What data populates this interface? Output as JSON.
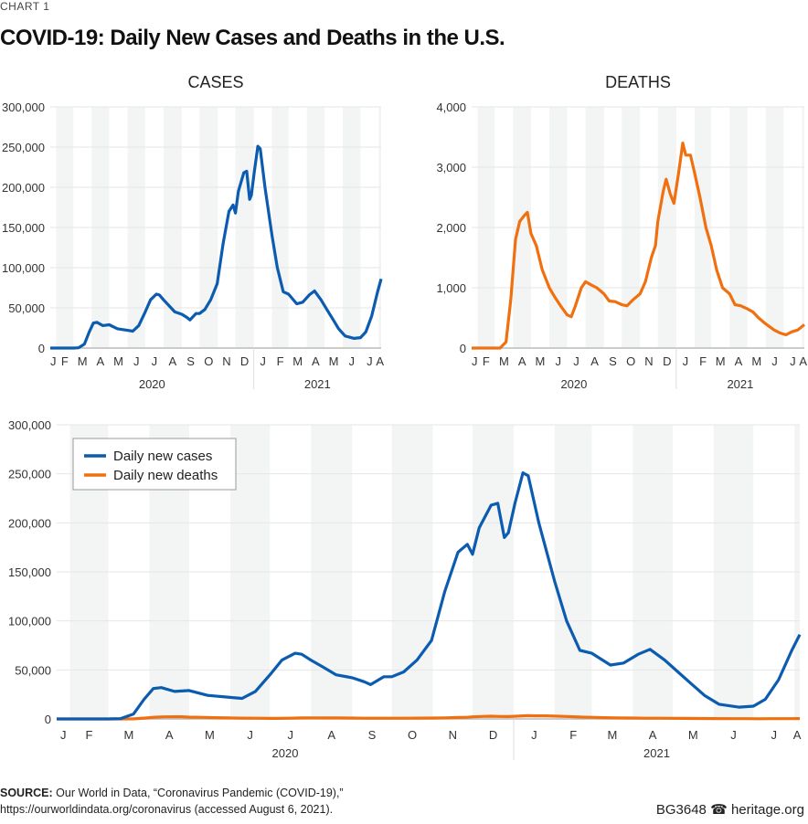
{
  "header": {
    "kicker": "CHART 1",
    "title": "COVID-19: Daily New Cases and Deaths in the U.S."
  },
  "footer": {
    "source_label": "SOURCE:",
    "source_line1": "Our World in Data, “Coronavirus Pandemic (COVID-19),”",
    "source_line2": "https://ourworldindata.org/coronavirus (accessed August 6, 2021).",
    "code": "BG3648",
    "site": "heritage.org",
    "logo_icon": "liberty-bell-icon"
  },
  "colors": {
    "cases": "#0b5cb0",
    "deaths": "#f07010",
    "band": "#f3f4f4",
    "grid": "#e6e6e6",
    "axis": "#bbbbbb"
  },
  "chart_data": [
    {
      "type": "line",
      "title": "CASES",
      "ylim": [
        0,
        300000
      ],
      "yticks": [
        "0",
        "50,000",
        "100,000",
        "150,000",
        "200,000",
        "250,000",
        "300,000"
      ],
      "month_labels": [
        "J",
        "F",
        "M",
        "A",
        "M",
        "J",
        "J",
        "A",
        "S",
        "O",
        "N",
        "D",
        "J",
        "F",
        "M",
        "A",
        "M",
        "J",
        "J",
        "A"
      ],
      "year_labels": [
        "2020",
        "2021"
      ],
      "series": [
        "cases"
      ]
    },
    {
      "type": "line",
      "title": "DEATHS",
      "ylim": [
        0,
        4000
      ],
      "yticks": [
        "0",
        "1,000",
        "2,000",
        "3,000",
        "4,000"
      ],
      "month_labels": [
        "J",
        "F",
        "M",
        "A",
        "M",
        "J",
        "J",
        "A",
        "S",
        "O",
        "N",
        "D",
        "J",
        "F",
        "M",
        "A",
        "M",
        "J",
        "J",
        "A"
      ],
      "year_labels": [
        "2020",
        "2021"
      ],
      "series": [
        "deaths"
      ]
    },
    {
      "type": "line",
      "title": "",
      "ylim": [
        0,
        300000
      ],
      "yticks": [
        "0",
        "50,000",
        "100,000",
        "150,000",
        "200,000",
        "250,000",
        "300,000"
      ],
      "month_labels": [
        "J",
        "F",
        "M",
        "A",
        "M",
        "J",
        "J",
        "A",
        "S",
        "O",
        "N",
        "D",
        "J",
        "F",
        "M",
        "A",
        "M",
        "J",
        "J",
        "A"
      ],
      "year_labels": [
        "2020",
        "2021"
      ],
      "series": [
        "cases",
        "deaths"
      ],
      "legend": {
        "placement": "top-left",
        "entries": [
          "Daily new cases",
          "Daily new deaths"
        ]
      }
    }
  ],
  "series_data": {
    "cases": [
      [
        "2020-01-22",
        0
      ],
      [
        "2020-03-01",
        0
      ],
      [
        "2020-03-10",
        300
      ],
      [
        "2020-03-20",
        5000
      ],
      [
        "2020-03-28",
        20000
      ],
      [
        "2020-04-04",
        31000
      ],
      [
        "2020-04-10",
        32000
      ],
      [
        "2020-04-20",
        28000
      ],
      [
        "2020-05-01",
        29000
      ],
      [
        "2020-05-15",
        24000
      ],
      [
        "2020-06-01",
        22000
      ],
      [
        "2020-06-10",
        21000
      ],
      [
        "2020-06-20",
        28000
      ],
      [
        "2020-07-01",
        45000
      ],
      [
        "2020-07-10",
        60000
      ],
      [
        "2020-07-20",
        67000
      ],
      [
        "2020-07-25",
        66000
      ],
      [
        "2020-08-01",
        60000
      ],
      [
        "2020-08-10",
        53000
      ],
      [
        "2020-08-20",
        45000
      ],
      [
        "2020-09-01",
        42000
      ],
      [
        "2020-09-10",
        38000
      ],
      [
        "2020-09-15",
        35000
      ],
      [
        "2020-09-25",
        43000
      ],
      [
        "2020-10-01",
        43000
      ],
      [
        "2020-10-10",
        48000
      ],
      [
        "2020-10-20",
        60000
      ],
      [
        "2020-10-31",
        80000
      ],
      [
        "2020-11-10",
        130000
      ],
      [
        "2020-11-20",
        170000
      ],
      [
        "2020-11-27",
        178000
      ],
      [
        "2020-12-01",
        168000
      ],
      [
        "2020-12-06",
        195000
      ],
      [
        "2020-12-15",
        218000
      ],
      [
        "2020-12-20",
        220000
      ],
      [
        "2020-12-25",
        185000
      ],
      [
        "2020-12-28",
        190000
      ],
      [
        "2021-01-02",
        220000
      ],
      [
        "2021-01-08",
        251000
      ],
      [
        "2021-01-12",
        248000
      ],
      [
        "2021-01-20",
        200000
      ],
      [
        "2021-02-01",
        140000
      ],
      [
        "2021-02-10",
        100000
      ],
      [
        "2021-02-20",
        70000
      ],
      [
        "2021-03-01",
        67000
      ],
      [
        "2021-03-15",
        55000
      ],
      [
        "2021-03-25",
        57000
      ],
      [
        "2021-04-05",
        66000
      ],
      [
        "2021-04-14",
        71000
      ],
      [
        "2021-04-25",
        60000
      ],
      [
        "2021-05-05",
        48000
      ],
      [
        "2021-05-15",
        36000
      ],
      [
        "2021-05-25",
        24000
      ],
      [
        "2021-06-05",
        15000
      ],
      [
        "2021-06-20",
        12000
      ],
      [
        "2021-07-01",
        13000
      ],
      [
        "2021-07-10",
        20000
      ],
      [
        "2021-07-20",
        40000
      ],
      [
        "2021-07-30",
        70000
      ],
      [
        "2021-08-05",
        86000
      ]
    ],
    "deaths": [
      [
        "2020-01-22",
        0
      ],
      [
        "2020-03-10",
        0
      ],
      [
        "2020-03-20",
        100
      ],
      [
        "2020-03-28",
        800
      ],
      [
        "2020-04-05",
        1800
      ],
      [
        "2020-04-12",
        2100
      ],
      [
        "2020-04-20",
        2200
      ],
      [
        "2020-04-25",
        2250
      ],
      [
        "2020-05-01",
        1900
      ],
      [
        "2020-05-10",
        1700
      ],
      [
        "2020-05-20",
        1300
      ],
      [
        "2020-06-01",
        1000
      ],
      [
        "2020-06-10",
        850
      ],
      [
        "2020-06-20",
        700
      ],
      [
        "2020-07-01",
        550
      ],
      [
        "2020-07-08",
        520
      ],
      [
        "2020-07-15",
        700
      ],
      [
        "2020-07-25",
        1000
      ],
      [
        "2020-08-01",
        1100
      ],
      [
        "2020-08-10",
        1050
      ],
      [
        "2020-08-20",
        1000
      ],
      [
        "2020-09-01",
        900
      ],
      [
        "2020-09-10",
        780
      ],
      [
        "2020-09-20",
        770
      ],
      [
        "2020-10-01",
        720
      ],
      [
        "2020-10-10",
        700
      ],
      [
        "2020-10-20",
        800
      ],
      [
        "2020-11-01",
        900
      ],
      [
        "2020-11-10",
        1100
      ],
      [
        "2020-11-20",
        1500
      ],
      [
        "2020-11-27",
        1700
      ],
      [
        "2020-12-01",
        2100
      ],
      [
        "2020-12-10",
        2600
      ],
      [
        "2020-12-15",
        2800
      ],
      [
        "2020-12-22",
        2550
      ],
      [
        "2020-12-28",
        2400
      ],
      [
        "2021-01-05",
        2900
      ],
      [
        "2021-01-12",
        3400
      ],
      [
        "2021-01-17",
        3200
      ],
      [
        "2021-01-25",
        3200
      ],
      [
        "2021-02-01",
        2900
      ],
      [
        "2021-02-10",
        2500
      ],
      [
        "2021-02-20",
        2000
      ],
      [
        "2021-03-01",
        1700
      ],
      [
        "2021-03-10",
        1300
      ],
      [
        "2021-03-20",
        1000
      ],
      [
        "2021-04-01",
        900
      ],
      [
        "2021-04-10",
        720
      ],
      [
        "2021-04-20",
        700
      ],
      [
        "2021-05-01",
        650
      ],
      [
        "2021-05-10",
        600
      ],
      [
        "2021-05-20",
        500
      ],
      [
        "2021-06-01",
        400
      ],
      [
        "2021-06-15",
        300
      ],
      [
        "2021-06-25",
        250
      ],
      [
        "2021-07-05",
        220
      ],
      [
        "2021-07-15",
        270
      ],
      [
        "2021-07-25",
        300
      ],
      [
        "2021-08-05",
        390
      ]
    ]
  }
}
